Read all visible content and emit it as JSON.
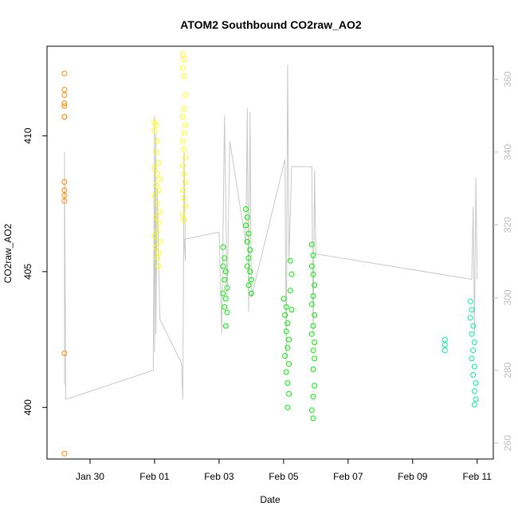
{
  "chart_data": {
    "type": "scatter",
    "title": "ATOM2 Southbound CO2raw_AO2",
    "xlabel": "Date",
    "ylabel": "CO2raw_AO2",
    "x_unit": "date",
    "xlim": [
      "2024-01-28T16:00",
      "2024-02-11T12:00"
    ],
    "ylim": [
      398.1,
      413.3
    ],
    "y2lim": [
      255.6,
      369.1
    ],
    "x_ticks": [
      {
        "label": "Jan 30",
        "value": "2024-01-30T00:00"
      },
      {
        "label": "Feb 01",
        "value": "2024-02-01T00:00"
      },
      {
        "label": "Feb 03",
        "value": "2024-02-03T00:00"
      },
      {
        "label": "Feb 05",
        "value": "2024-02-05T00:00"
      },
      {
        "label": "Feb 07",
        "value": "2024-02-07T00:00"
      },
      {
        "label": "Feb 09",
        "value": "2024-02-09T00:00"
      },
      {
        "label": "Feb 11",
        "value": "2024-02-11T00:00"
      }
    ],
    "y_ticks": [
      400,
      405,
      410
    ],
    "y2_ticks": [
      260,
      280,
      300,
      320,
      340,
      360
    ],
    "grid": false,
    "legend": "none",
    "colors": {
      "line": "#c8c8c8",
      "frame": "#000000",
      "right_axis": "#bdbdbd"
    },
    "series": [
      {
        "axis": "left",
        "mark": "circle",
        "color": "#ff8c00",
        "points": [
          [
            "2024-01-29T05:00",
            412.3
          ],
          [
            "2024-01-29T05:00",
            411.7
          ],
          [
            "2024-01-29T05:00",
            411.5
          ],
          [
            "2024-01-29T05:00",
            411.2
          ],
          [
            "2024-01-29T05:00",
            411.1
          ],
          [
            "2024-01-29T05:00",
            410.7
          ],
          [
            "2024-01-29T05:00",
            410.7
          ],
          [
            "2024-01-29T05:00",
            408.3
          ],
          [
            "2024-01-29T05:00",
            408.0
          ],
          [
            "2024-01-29T05:00",
            407.8
          ],
          [
            "2024-01-29T05:00",
            407.6
          ],
          [
            "2024-01-29T05:00",
            402.0
          ],
          [
            "2024-01-29T05:00",
            398.3
          ]
        ]
      },
      {
        "axis": "left",
        "mark": "circle",
        "color": "#ffff00",
        "points": [
          [
            "2024-02-01T00:00",
            410.5
          ],
          [
            "2024-02-01T01:00",
            410.4
          ],
          [
            "2024-02-01T00:00",
            410.2
          ],
          [
            "2024-02-01T02:00",
            409.8
          ],
          [
            "2024-02-01T01:00",
            409.4
          ],
          [
            "2024-02-01T03:00",
            409.0
          ],
          [
            "2024-02-01T00:00",
            408.8
          ],
          [
            "2024-02-01T02:00",
            408.6
          ],
          [
            "2024-02-01T04:00",
            408.4
          ],
          [
            "2024-02-01T01:00",
            408.2
          ],
          [
            "2024-02-01T03:00",
            408.0
          ],
          [
            "2024-02-01T00:00",
            407.8
          ],
          [
            "2024-02-01T02:00",
            407.5
          ],
          [
            "2024-02-01T04:00",
            407.2
          ],
          [
            "2024-02-01T01:00",
            407.0
          ],
          [
            "2024-02-01T03:00",
            406.8
          ],
          [
            "2024-02-01T02:00",
            406.5
          ],
          [
            "2024-02-01T00:00",
            406.3
          ],
          [
            "2024-02-01T04:00",
            406.1
          ],
          [
            "2024-02-01T01:00",
            405.9
          ],
          [
            "2024-02-01T03:00",
            405.7
          ],
          [
            "2024-02-01T02:00",
            405.5
          ],
          [
            "2024-02-01T03:00",
            405.2
          ],
          [
            "2024-02-01T21:00",
            413.0
          ],
          [
            "2024-02-01T22:00",
            412.8
          ],
          [
            "2024-02-01T21:00",
            412.5
          ],
          [
            "2024-02-01T22:00",
            412.2
          ],
          [
            "2024-02-01T23:00",
            411.5
          ],
          [
            "2024-02-01T22:00",
            411.0
          ],
          [
            "2024-02-01T21:00",
            410.7
          ],
          [
            "2024-02-01T23:00",
            410.4
          ],
          [
            "2024-02-01T22:00",
            410.1
          ],
          [
            "2024-02-01T21:00",
            409.8
          ],
          [
            "2024-02-01T22:00",
            409.5
          ],
          [
            "2024-02-01T23:00",
            409.2
          ],
          [
            "2024-02-01T21:00",
            408.9
          ],
          [
            "2024-02-01T22:00",
            408.6
          ],
          [
            "2024-02-01T23:00",
            408.3
          ],
          [
            "2024-02-01T21:00",
            408.0
          ],
          [
            "2024-02-01T22:00",
            407.7
          ],
          [
            "2024-02-01T23:00",
            407.4
          ],
          [
            "2024-02-01T21:00",
            407.1
          ],
          [
            "2024-02-01T22:00",
            406.9
          ]
        ]
      },
      {
        "axis": "left",
        "mark": "circle",
        "color": "#00ee00",
        "points": [
          [
            "2024-02-03T03:00",
            405.9
          ],
          [
            "2024-02-03T04:00",
            405.5
          ],
          [
            "2024-02-03T03:00",
            405.2
          ],
          [
            "2024-02-03T05:00",
            405.0
          ],
          [
            "2024-02-03T04:00",
            404.7
          ],
          [
            "2024-02-03T06:00",
            404.4
          ],
          [
            "2024-02-03T03:00",
            404.2
          ],
          [
            "2024-02-03T05:00",
            404.0
          ],
          [
            "2024-02-03T04:00",
            403.7
          ],
          [
            "2024-02-03T06:00",
            403.5
          ],
          [
            "2024-02-03T05:00",
            403.0
          ],
          [
            "2024-02-03T20:00",
            407.3
          ],
          [
            "2024-02-03T21:00",
            407.0
          ],
          [
            "2024-02-03T20:00",
            406.7
          ],
          [
            "2024-02-03T22:00",
            406.4
          ],
          [
            "2024-02-03T21:00",
            406.1
          ],
          [
            "2024-02-03T23:00",
            405.8
          ],
          [
            "2024-02-03T22:00",
            405.5
          ],
          [
            "2024-02-03T21:00",
            405.2
          ],
          [
            "2024-02-03T23:00",
            405.0
          ],
          [
            "2024-02-04T00:00",
            404.7
          ],
          [
            "2024-02-03T22:00",
            404.5
          ],
          [
            "2024-02-04T00:00",
            404.2
          ],
          [
            "2024-02-05T00:00",
            404.0
          ],
          [
            "2024-02-05T02:00",
            403.7
          ],
          [
            "2024-02-05T01:00",
            403.4
          ],
          [
            "2024-02-05T03:00",
            403.1
          ],
          [
            "2024-02-05T02:00",
            402.8
          ],
          [
            "2024-02-05T04:00",
            402.5
          ],
          [
            "2024-02-05T03:00",
            402.2
          ],
          [
            "2024-02-05T01:00",
            401.9
          ],
          [
            "2024-02-05T04:00",
            401.6
          ],
          [
            "2024-02-05T02:00",
            401.3
          ],
          [
            "2024-02-05T03:00",
            400.9
          ],
          [
            "2024-02-05T04:00",
            400.5
          ],
          [
            "2024-02-05T03:00",
            400.0
          ],
          [
            "2024-02-05T05:00",
            405.4
          ],
          [
            "2024-02-05T06:00",
            404.9
          ],
          [
            "2024-02-05T05:00",
            404.3
          ],
          [
            "2024-02-05T06:00",
            403.6
          ],
          [
            "2024-02-05T21:00",
            406.0
          ],
          [
            "2024-02-05T22:00",
            405.6
          ],
          [
            "2024-02-05T21:00",
            405.2
          ],
          [
            "2024-02-05T22:00",
            404.9
          ],
          [
            "2024-02-05T23:00",
            404.5
          ],
          [
            "2024-02-05T22:00",
            404.1
          ],
          [
            "2024-02-05T21:00",
            403.8
          ],
          [
            "2024-02-05T23:00",
            403.4
          ],
          [
            "2024-02-05T22:00",
            403.0
          ],
          [
            "2024-02-05T21:00",
            402.7
          ],
          [
            "2024-02-05T23:00",
            402.4
          ],
          [
            "2024-02-05T22:00",
            402.1
          ],
          [
            "2024-02-05T23:00",
            401.8
          ],
          [
            "2024-02-05T22:00",
            401.4
          ],
          [
            "2024-02-05T23:00",
            400.8
          ],
          [
            "2024-02-05T22:00",
            400.4
          ],
          [
            "2024-02-05T21:00",
            399.9
          ],
          [
            "2024-02-05T22:00",
            399.6
          ]
        ]
      },
      {
        "axis": "left",
        "mark": "circle",
        "color": "#00ee99",
        "points": [
          [
            "2024-02-10T00:00",
            402.5
          ],
          [
            "2024-02-10T00:00",
            402.3
          ],
          [
            "2024-02-10T00:00",
            402.1
          ],
          [
            "2024-02-10T19:00",
            403.9
          ],
          [
            "2024-02-10T20:00",
            403.6
          ],
          [
            "2024-02-10T19:00",
            403.3
          ],
          [
            "2024-02-10T21:00",
            403.0
          ],
          [
            "2024-02-10T20:00",
            402.7
          ],
          [
            "2024-02-10T22:00",
            402.4
          ],
          [
            "2024-02-10T21:00",
            402.1
          ],
          [
            "2024-02-10T20:00",
            401.8
          ],
          [
            "2024-02-10T22:00",
            401.5
          ],
          [
            "2024-02-10T21:00",
            401.2
          ],
          [
            "2024-02-10T23:00",
            400.9
          ],
          [
            "2024-02-10T22:00",
            400.6
          ],
          [
            "2024-02-10T23:00",
            400.3
          ],
          [
            "2024-02-10T22:00",
            400.1
          ]
        ]
      },
      {
        "axis": "right",
        "mark": "line",
        "color": "#c8c8c8",
        "points": [
          [
            "2024-01-29T05:00",
            276
          ],
          [
            "2024-01-29T05:00",
            340
          ],
          [
            "2024-01-29T06:00",
            272
          ],
          [
            "2024-01-31T23:00",
            280
          ],
          [
            "2024-02-01T00:00",
            350
          ],
          [
            "2024-02-01T00:00",
            285
          ],
          [
            "2024-02-01T01:00",
            345
          ],
          [
            "2024-02-01T01:00",
            290
          ],
          [
            "2024-02-01T02:00",
            330
          ],
          [
            "2024-02-01T03:00",
            310
          ],
          [
            "2024-02-01T04:00",
            294
          ],
          [
            "2024-02-01T20:00",
            282
          ],
          [
            "2024-02-01T21:00",
            272
          ],
          [
            "2024-02-01T22:00",
            340
          ],
          [
            "2024-02-01T23:00",
            310
          ],
          [
            "2024-02-01T22:00",
            316
          ],
          [
            "2024-02-03T00:00",
            318
          ],
          [
            "2024-02-03T02:00",
            290
          ],
          [
            "2024-02-03T04:00",
            350
          ],
          [
            "2024-02-03T06:00",
            300
          ],
          [
            "2024-02-03T08:00",
            343
          ],
          [
            "2024-02-03T20:00",
            315
          ],
          [
            "2024-02-03T21:00",
            352
          ],
          [
            "2024-02-03T22:00",
            296
          ],
          [
            "2024-02-03T23:00",
            351
          ],
          [
            "2024-02-04T00:00",
            300
          ],
          [
            "2024-02-05T01:00",
            338
          ],
          [
            "2024-02-05T02:00",
            282
          ],
          [
            "2024-02-05T03:00",
            364
          ],
          [
            "2024-02-05T04:00",
            310
          ],
          [
            "2024-02-05T06:00",
            336
          ],
          [
            "2024-02-05T21:00",
            336
          ],
          [
            "2024-02-05T22:00",
            290
          ],
          [
            "2024-02-05T23:00",
            335
          ],
          [
            "2024-02-06T00:00",
            312
          ],
          [
            "2024-02-10T20:00",
            305
          ],
          [
            "2024-02-10T21:00",
            325
          ],
          [
            "2024-02-10T22:00",
            290
          ],
          [
            "2024-02-10T23:00",
            333
          ],
          [
            "2024-02-11T00:00",
            305
          ]
        ]
      }
    ]
  }
}
